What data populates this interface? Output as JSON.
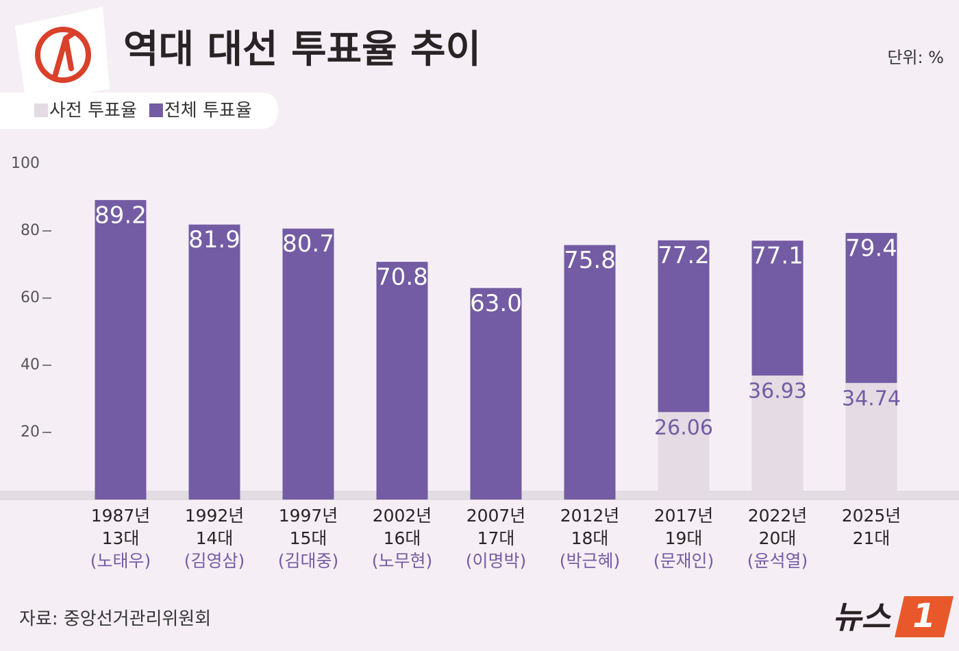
{
  "chart_data": {
    "type": "bar",
    "title": "역대 대선 투표율 추이",
    "unit": "단위: %",
    "source": "자료: 중앙선거관리위원회",
    "logo": {
      "text": "뉴스",
      "number": "1"
    },
    "categories": [
      [
        "1987년",
        "13대",
        "(노태우)"
      ],
      [
        "1992년",
        "14대",
        "(김영삼)"
      ],
      [
        "1997년",
        "15대",
        "(김대중)"
      ],
      [
        "2002년",
        "16대",
        "(노무현)"
      ],
      [
        "2007년",
        "17대",
        "(이명박)"
      ],
      [
        "2012년",
        "18대",
        "(박근혜)"
      ],
      [
        "2017년",
        "19대",
        "(문재인)"
      ],
      [
        "2022년",
        "20대",
        "(윤석열)"
      ],
      [
        "2025년",
        "21대",
        null
      ]
    ],
    "series": [
      {
        "name": "사전 투표율",
        "color": "#e4dbe4",
        "label_color": "#735ca3",
        "values": [
          null,
          null,
          null,
          null,
          null,
          null,
          26.06,
          36.93,
          34.74
        ]
      },
      {
        "name": "전체 투표율",
        "color": "#735ca3",
        "label_color": "#ffffff",
        "values": [
          89.2,
          81.9,
          80.7,
          70.8,
          63.0,
          75.8,
          77.2,
          77.1,
          79.4
        ],
        "value_labels": [
          "89.2",
          "81.9",
          "80.7",
          "70.8",
          "63.0",
          "75.8",
          "77.2",
          "77.1",
          "79.4"
        ]
      }
    ],
    "ylim": [
      0,
      100
    ],
    "yticks": [
      20,
      40,
      60,
      80,
      100
    ]
  }
}
